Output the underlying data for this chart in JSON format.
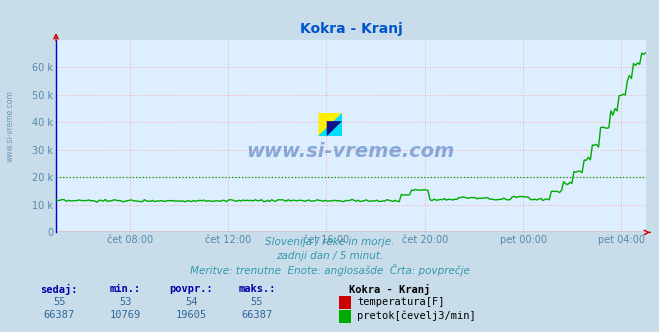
{
  "title": "Kokra - Kranj",
  "title_color": "#0055cc",
  "bg_color": "#c8dcea",
  "plot_bg_color": "#ddeeff",
  "watermark": "www.si-vreme.com",
  "watermark_color": "#2255aa",
  "side_watermark": "www.si-vreme.com",
  "x_labels": [
    "čet 08:00",
    "čet 12:00",
    "čet 16:00",
    "čet 20:00",
    "pet 00:00",
    "pet 04:00"
  ],
  "x_fracs": [
    0.125,
    0.292,
    0.458,
    0.625,
    0.792,
    0.958
  ],
  "ylim": [
    0,
    70000
  ],
  "yticks": [
    0,
    10000,
    20000,
    30000,
    40000,
    50000,
    60000
  ],
  "ytick_labels": [
    "0",
    "10 k",
    "20 k",
    "30 k",
    "40 k",
    "50 k",
    "60 k"
  ],
  "dashed_line_y": 20000,
  "dashed_line_color": "#009900",
  "temp_color": "#cc0000",
  "flow_color": "#00aa00",
  "axis_color": "#cc0000",
  "grid_color": "#ffaaaa",
  "tick_color": "#5588aa",
  "subtitle_color": "#3399aa",
  "stats_header_color": "#0000aa",
  "stats_value_color": "#336699",
  "legend_title": "Kokra - Kranj",
  "subtitle_line1": "Slovenija / reke in morje.",
  "subtitle_line2": "zadnji dan / 5 minut.",
  "subtitle_line3": "Meritve: trenutne  Enote: anglosašde  Črta: povprečje",
  "stats_headers": [
    "sedaj:",
    "min.:",
    "povpr.:",
    "maks.:"
  ],
  "stats_temp": [
    "55",
    "53",
    "54",
    "55"
  ],
  "stats_flow": [
    "66387",
    "10769",
    "19605",
    "66387"
  ],
  "legend_items": [
    {
      "label": "temperatura[F]",
      "color": "#cc0000"
    },
    {
      "label": "pretok[čevelj3/min]",
      "color": "#00aa00"
    }
  ]
}
